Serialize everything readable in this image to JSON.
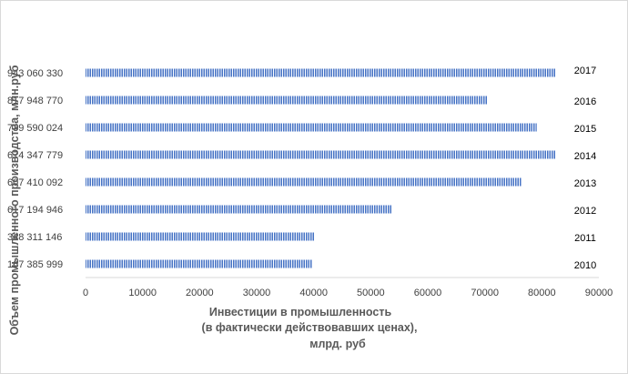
{
  "chart_data": {
    "type": "bar",
    "orientation": "horizontal",
    "categories": [
      "167 385 999",
      "348 311 146",
      "617 194 946",
      "607 410 092",
      "674 347 779",
      "739 590 024",
      "817 948 770",
      "943 060 330"
    ],
    "year_labels": [
      "2010",
      "2011",
      "2012",
      "2013",
      "2014",
      "2015",
      "2016",
      "2017"
    ],
    "values": [
      39700,
      40200,
      53700,
      76500,
      82500,
      79100,
      70400,
      82400
    ],
    "xlabel": "Инвестиции в промышленность (в фактически действовавших ценах), млрд. руб",
    "xlabel_lines": [
      "Инвестиции в промышленность",
      "(в фактически действовавших ценах),",
      "млрд. руб"
    ],
    "ylabel": "Объем промышленного производства, млн.руб",
    "xlim": [
      0,
      90000
    ],
    "xticks": [
      "0",
      "10000",
      "20000",
      "30000",
      "40000",
      "50000",
      "60000",
      "70000",
      "80000",
      "90000"
    ],
    "bar_color": "#4472c4",
    "grid": false,
    "legend": "none"
  }
}
